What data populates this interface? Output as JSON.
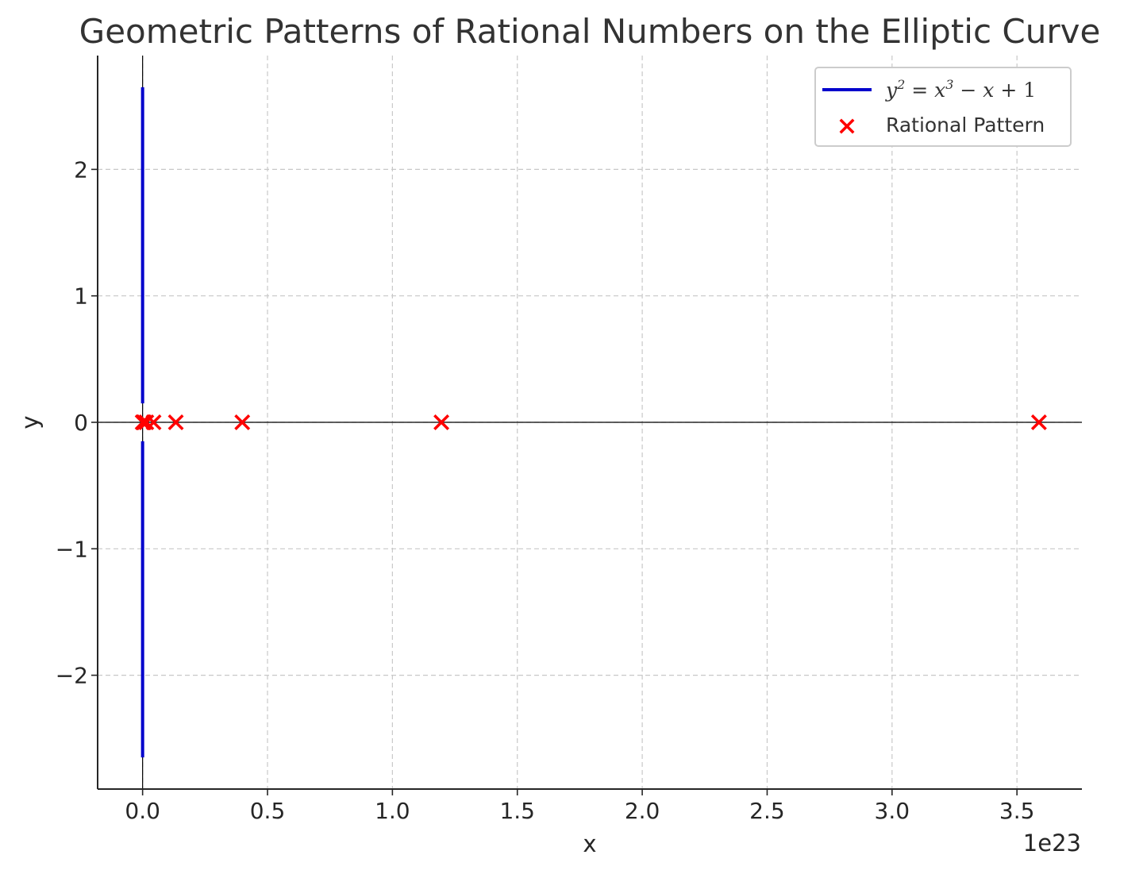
{
  "chart_data": {
    "type": "scatter",
    "title": "Geometric Patterns of Rational Numbers on the Elliptic Curve",
    "xlabel": "x",
    "ylabel": "y",
    "x_offset_text": "1e23",
    "xlim": [
      -0.18,
      3.76
    ],
    "ylim": [
      -2.9,
      2.9
    ],
    "x_ticks": [
      0.0,
      0.5,
      1.0,
      1.5,
      2.0,
      2.5,
      3.0,
      3.5
    ],
    "x_tick_labels": [
      "0.0",
      "0.5",
      "1.0",
      "1.5",
      "2.0",
      "2.5",
      "3.0",
      "3.5"
    ],
    "y_ticks": [
      -2,
      -1,
      0,
      1,
      2
    ],
    "y_tick_labels": [
      "−2",
      "−1",
      "0",
      "1",
      "2"
    ],
    "grid": true,
    "legend_position": "top-right",
    "series": [
      {
        "name": "y² = x³ − x + 1",
        "type": "line",
        "color": "#0000cc",
        "segments": [
          {
            "x": [
              0,
              0
            ],
            "y": [
              0.15,
              2.65
            ]
          },
          {
            "x": [
              0,
              0
            ],
            "y": [
              -0.15,
              -2.65
            ]
          }
        ]
      },
      {
        "name": "Rational Pattern",
        "type": "scatter",
        "marker": "x",
        "color": "#ff0000",
        "x": [
          0.0,
          0.003,
          0.006,
          0.015,
          0.044,
          0.133,
          0.399,
          1.196,
          3.588
        ],
        "y": [
          0,
          0,
          0,
          0,
          0,
          0,
          0,
          0,
          0
        ]
      }
    ]
  },
  "legend": {
    "line_label_parts": [
      "y",
      "2",
      " = ",
      "x",
      "3",
      " − ",
      "x",
      " + 1"
    ],
    "scatter_label": "Rational Pattern"
  }
}
